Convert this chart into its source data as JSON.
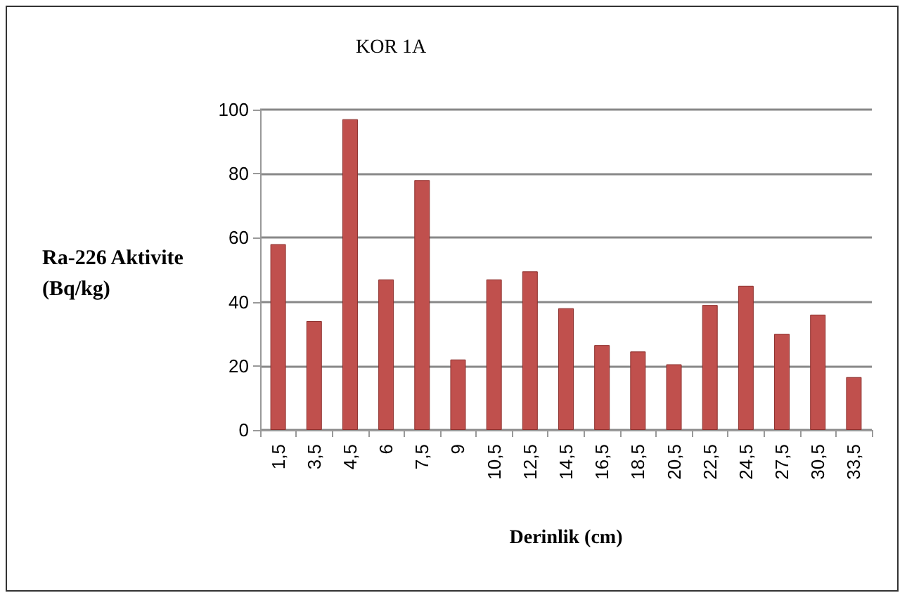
{
  "chart_data": {
    "type": "bar",
    "title": "KOR 1A",
    "xlabel": "Derinlik (cm)",
    "ylabel": "Ra-226 Aktivite\n(Bq/kg)",
    "categories": [
      "1,5",
      "3,5",
      "4,5",
      "6",
      "7,5",
      "9",
      "10,5",
      "12,5",
      "14,5",
      "16,5",
      "18,5",
      "20,5",
      "22,5",
      "24,5",
      "27,5",
      "30,5",
      "33,5"
    ],
    "values": [
      58,
      34,
      97,
      47,
      78,
      22,
      47,
      49.5,
      38,
      26.5,
      24.5,
      20.5,
      39,
      45,
      30,
      36,
      16.5
    ],
    "color": "#c0504d",
    "ylim": [
      0,
      100
    ],
    "yticks": [
      0,
      20,
      40,
      60,
      80,
      100
    ],
    "grid": "y"
  }
}
